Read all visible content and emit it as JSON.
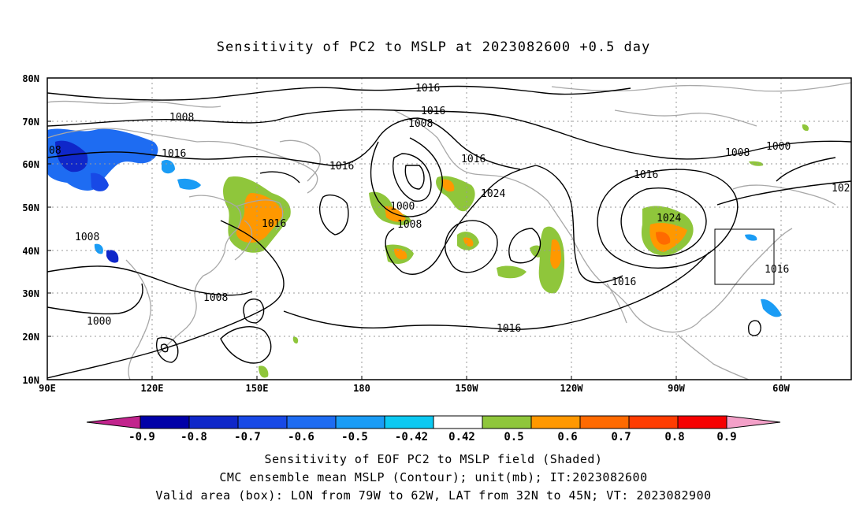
{
  "title": "Sensitivity of PC2 to MSLP at 2023082600 +0.5 day",
  "captions": [
    "Sensitivity of EOF PC2 to MSLP field (Shaded)",
    "CMC ensemble mean MSLP (Contour); unit(mb); IT:2023082600",
    "Valid area (box): LON from 79W to 62W, LAT from 32N to 45N; VT: 2023082900"
  ],
  "map": {
    "lon_range": [
      90,
      320
    ],
    "lat_range": [
      10,
      80
    ],
    "lon_ticks": [
      "90E",
      "120E",
      "150E",
      "180",
      "150W",
      "120W",
      "90W",
      "60W"
    ],
    "lat_ticks": [
      "80N",
      "70N",
      "60N",
      "50N",
      "40N",
      "30N",
      "20N",
      "10N"
    ],
    "valid_box": {
      "lon_from": "79W",
      "lon_to": "62W",
      "lat_from": "32N",
      "lat_to": "45N"
    },
    "contour_labels": [
      "1016",
      "1016",
      "1008",
      "1016",
      "1016",
      "1008",
      "1016",
      "1000",
      "1008",
      "1024",
      "1016",
      "08",
      "1016",
      "1008",
      "1016",
      "1008",
      "1000",
      "1008",
      "1000",
      "1024",
      "1016",
      "1016",
      "102"
    ]
  },
  "colorbar": {
    "labels": [
      "-0.9",
      "-0.8",
      "-0.7",
      "-0.6",
      "-0.5",
      "-0.42",
      "0.42",
      "0.5",
      "0.6",
      "0.7",
      "0.8",
      "0.9"
    ],
    "colors": {
      "min_arrow": "#c2248d",
      "bins": [
        "#0000a8",
        "#0f27c9",
        "#1849e6",
        "#1e6cf2",
        "#1a9cf5",
        "#0cc9f2",
        "#ffffff",
        "#8fc63b",
        "#ff9800",
        "#ff6a00",
        "#ff3c00",
        "#f60000"
      ],
      "max_arrow": "#f3a0c8"
    }
  },
  "styles": {
    "coast_color": "#a8a8a8",
    "contour_color": "#000000",
    "grid_color": "#9a9a9a"
  }
}
